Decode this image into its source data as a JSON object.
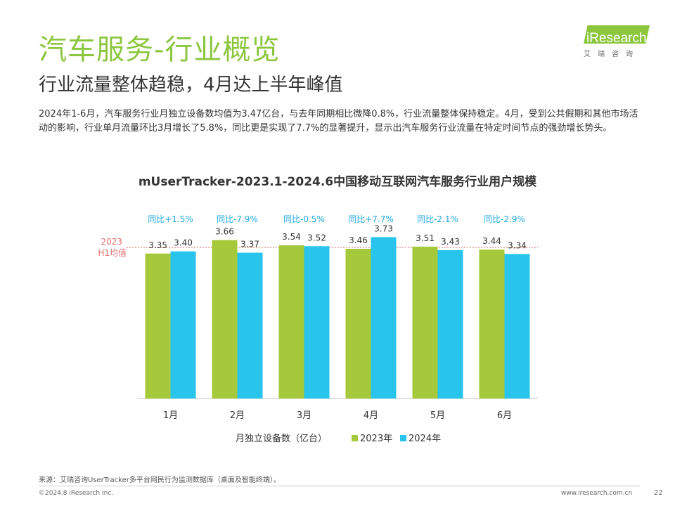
{
  "header": {
    "title": "汽车服务-行业概览",
    "subtitle": "行业流量整体趋稳，4月达上半年峰值",
    "paragraph": "2024年1-6月，汽车服务行业月独立设备数均值为3.47亿台，与去年同期相比微降0.8%，行业流量整体保持稳定。4月，受到公共假期和其他市场活动的影响，行业单月流量环比3月增长了5.8%，同比更是实现了7.7%的显著提升，显示出汽车服务行业流量在特定时间节点的强劲增长势头。"
  },
  "logo": {
    "word": "iResearch",
    "cn": "艾瑞咨询"
  },
  "colors": {
    "accent": "#8cc63f",
    "series_2023": "#a5c93a",
    "series_2024": "#29c4ec",
    "avg_line": "#e36c6c"
  },
  "chart_data": {
    "type": "bar",
    "title": "mUserTracker-2023.1-2024.6中国移动互联网汽车服务行业用户规模",
    "xlabel": "月独立设备数（亿台）",
    "ylabel": "",
    "categories": [
      "1月",
      "2月",
      "3月",
      "4月",
      "5月",
      "6月"
    ],
    "series": [
      {
        "name": "2023年",
        "values": [
          3.35,
          3.66,
          3.54,
          3.46,
          3.51,
          3.44
        ]
      },
      {
        "name": "2024年",
        "values": [
          3.4,
          3.37,
          3.52,
          3.73,
          3.43,
          3.34
        ]
      }
    ],
    "annotations": [
      "同比+1.5%",
      "同比-7.9%",
      "同比-0.5%",
      "同比+7.7%",
      "同比-2.1%",
      "同比-2.9%"
    ],
    "reference_line": {
      "label_line1": "2023",
      "label_line2": "H1均值",
      "value": 3.49
    },
    "ylim": [
      0,
      3.85
    ],
    "grid": false,
    "legend": "bottom"
  },
  "footer": {
    "source": "来源：艾瑞咨询UserTracker多平台网民行为监测数据库（桌面及智能终端）。",
    "copyright": "©2024.8 iResearch Inc.",
    "website": "www.iresearch.com.cn",
    "page": "22"
  }
}
